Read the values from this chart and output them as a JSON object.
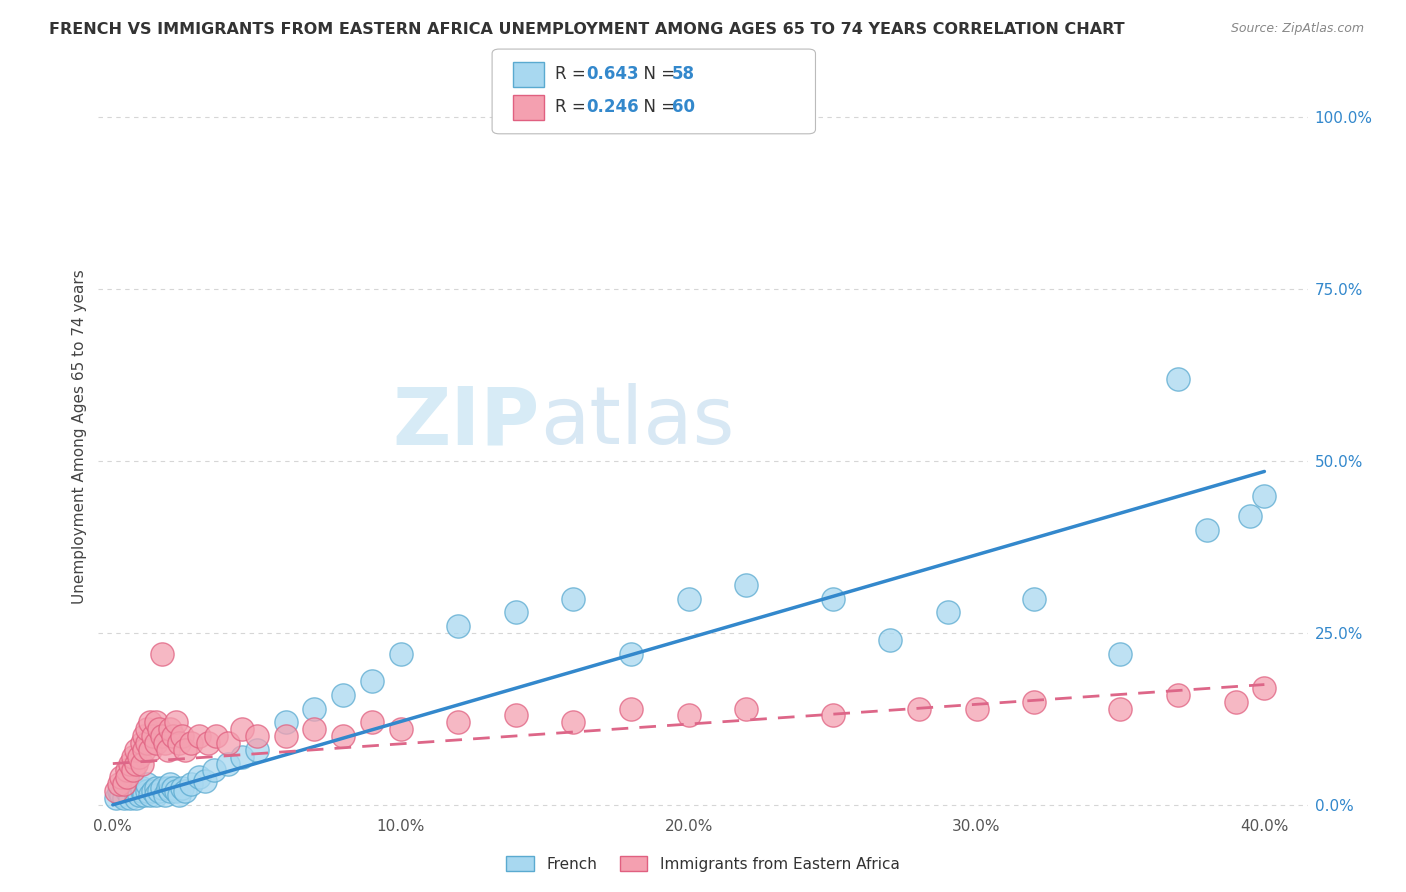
{
  "title": "FRENCH VS IMMIGRANTS FROM EASTERN AFRICA UNEMPLOYMENT AMONG AGES 65 TO 74 YEARS CORRELATION CHART",
  "source": "Source: ZipAtlas.com",
  "ylabel": "Unemployment Among Ages 65 to 74 years",
  "x_tick_labels": [
    "0.0%",
    "10.0%",
    "20.0%",
    "30.0%",
    "40.0%"
  ],
  "x_tick_values": [
    0.0,
    0.1,
    0.2,
    0.3,
    0.4
  ],
  "y_tick_labels": [
    "0.0%",
    "25.0%",
    "50.0%",
    "75.0%",
    "100.0%"
  ],
  "y_tick_values": [
    0.0,
    0.25,
    0.5,
    0.75,
    1.0
  ],
  "xlim": [
    -0.005,
    0.415
  ],
  "ylim": [
    -0.01,
    1.08
  ],
  "legend_label1": "French",
  "legend_label2": "Immigrants from Eastern Africa",
  "r1": 0.643,
  "n1": 58,
  "r2": 0.246,
  "n2": 60,
  "color_french": "#a8d8f0",
  "color_immig": "#f4a0b0",
  "color_french_edge": "#5aaad0",
  "color_immig_edge": "#e06080",
  "color_french_line": "#3388cc",
  "color_immig_line": "#dd6688",
  "background_color": "#ffffff",
  "grid_color": "#cccccc",
  "french_scatter_x": [
    0.001,
    0.002,
    0.003,
    0.004,
    0.005,
    0.005,
    0.006,
    0.007,
    0.008,
    0.008,
    0.009,
    0.01,
    0.01,
    0.011,
    0.012,
    0.012,
    0.013,
    0.014,
    0.015,
    0.015,
    0.016,
    0.017,
    0.018,
    0.019,
    0.02,
    0.02,
    0.021,
    0.022,
    0.023,
    0.024,
    0.025,
    0.027,
    0.03,
    0.032,
    0.035,
    0.04,
    0.045,
    0.05,
    0.06,
    0.07,
    0.08,
    0.09,
    0.1,
    0.12,
    0.14,
    0.16,
    0.18,
    0.2,
    0.22,
    0.25,
    0.27,
    0.29,
    0.32,
    0.35,
    0.37,
    0.38,
    0.395,
    0.4
  ],
  "french_scatter_y": [
    0.01,
    0.02,
    0.015,
    0.01,
    0.02,
    0.03,
    0.01,
    0.025,
    0.02,
    0.01,
    0.015,
    0.02,
    0.025,
    0.015,
    0.02,
    0.03,
    0.015,
    0.02,
    0.025,
    0.015,
    0.02,
    0.025,
    0.015,
    0.025,
    0.02,
    0.03,
    0.025,
    0.02,
    0.015,
    0.025,
    0.02,
    0.03,
    0.04,
    0.035,
    0.05,
    0.06,
    0.07,
    0.08,
    0.12,
    0.14,
    0.16,
    0.18,
    0.22,
    0.26,
    0.28,
    0.3,
    0.22,
    0.3,
    0.32,
    0.3,
    0.24,
    0.28,
    0.3,
    0.22,
    0.62,
    0.4,
    0.42,
    0.45
  ],
  "immig_scatter_x": [
    0.001,
    0.002,
    0.003,
    0.004,
    0.005,
    0.005,
    0.006,
    0.007,
    0.007,
    0.008,
    0.008,
    0.009,
    0.01,
    0.01,
    0.011,
    0.011,
    0.012,
    0.012,
    0.013,
    0.013,
    0.014,
    0.015,
    0.015,
    0.016,
    0.017,
    0.017,
    0.018,
    0.019,
    0.02,
    0.021,
    0.022,
    0.023,
    0.024,
    0.025,
    0.027,
    0.03,
    0.033,
    0.036,
    0.04,
    0.045,
    0.05,
    0.06,
    0.07,
    0.08,
    0.09,
    0.1,
    0.12,
    0.14,
    0.16,
    0.18,
    0.2,
    0.22,
    0.25,
    0.28,
    0.3,
    0.32,
    0.35,
    0.37,
    0.39,
    0.4
  ],
  "immig_scatter_y": [
    0.02,
    0.03,
    0.04,
    0.03,
    0.05,
    0.04,
    0.06,
    0.05,
    0.07,
    0.06,
    0.08,
    0.07,
    0.09,
    0.06,
    0.1,
    0.08,
    0.09,
    0.11,
    0.08,
    0.12,
    0.1,
    0.09,
    0.12,
    0.11,
    0.22,
    0.1,
    0.09,
    0.08,
    0.11,
    0.1,
    0.12,
    0.09,
    0.1,
    0.08,
    0.09,
    0.1,
    0.09,
    0.1,
    0.09,
    0.11,
    0.1,
    0.1,
    0.11,
    0.1,
    0.12,
    0.11,
    0.12,
    0.13,
    0.12,
    0.14,
    0.13,
    0.14,
    0.13,
    0.14,
    0.14,
    0.15,
    0.14,
    0.16,
    0.15,
    0.17
  ],
  "french_line_x0": 0.0,
  "french_line_y0": 0.0,
  "french_line_x1": 0.4,
  "french_line_y1": 0.485,
  "immig_line_x0": 0.0,
  "immig_line_y0": 0.06,
  "immig_line_x1": 0.4,
  "immig_line_y1": 0.175
}
